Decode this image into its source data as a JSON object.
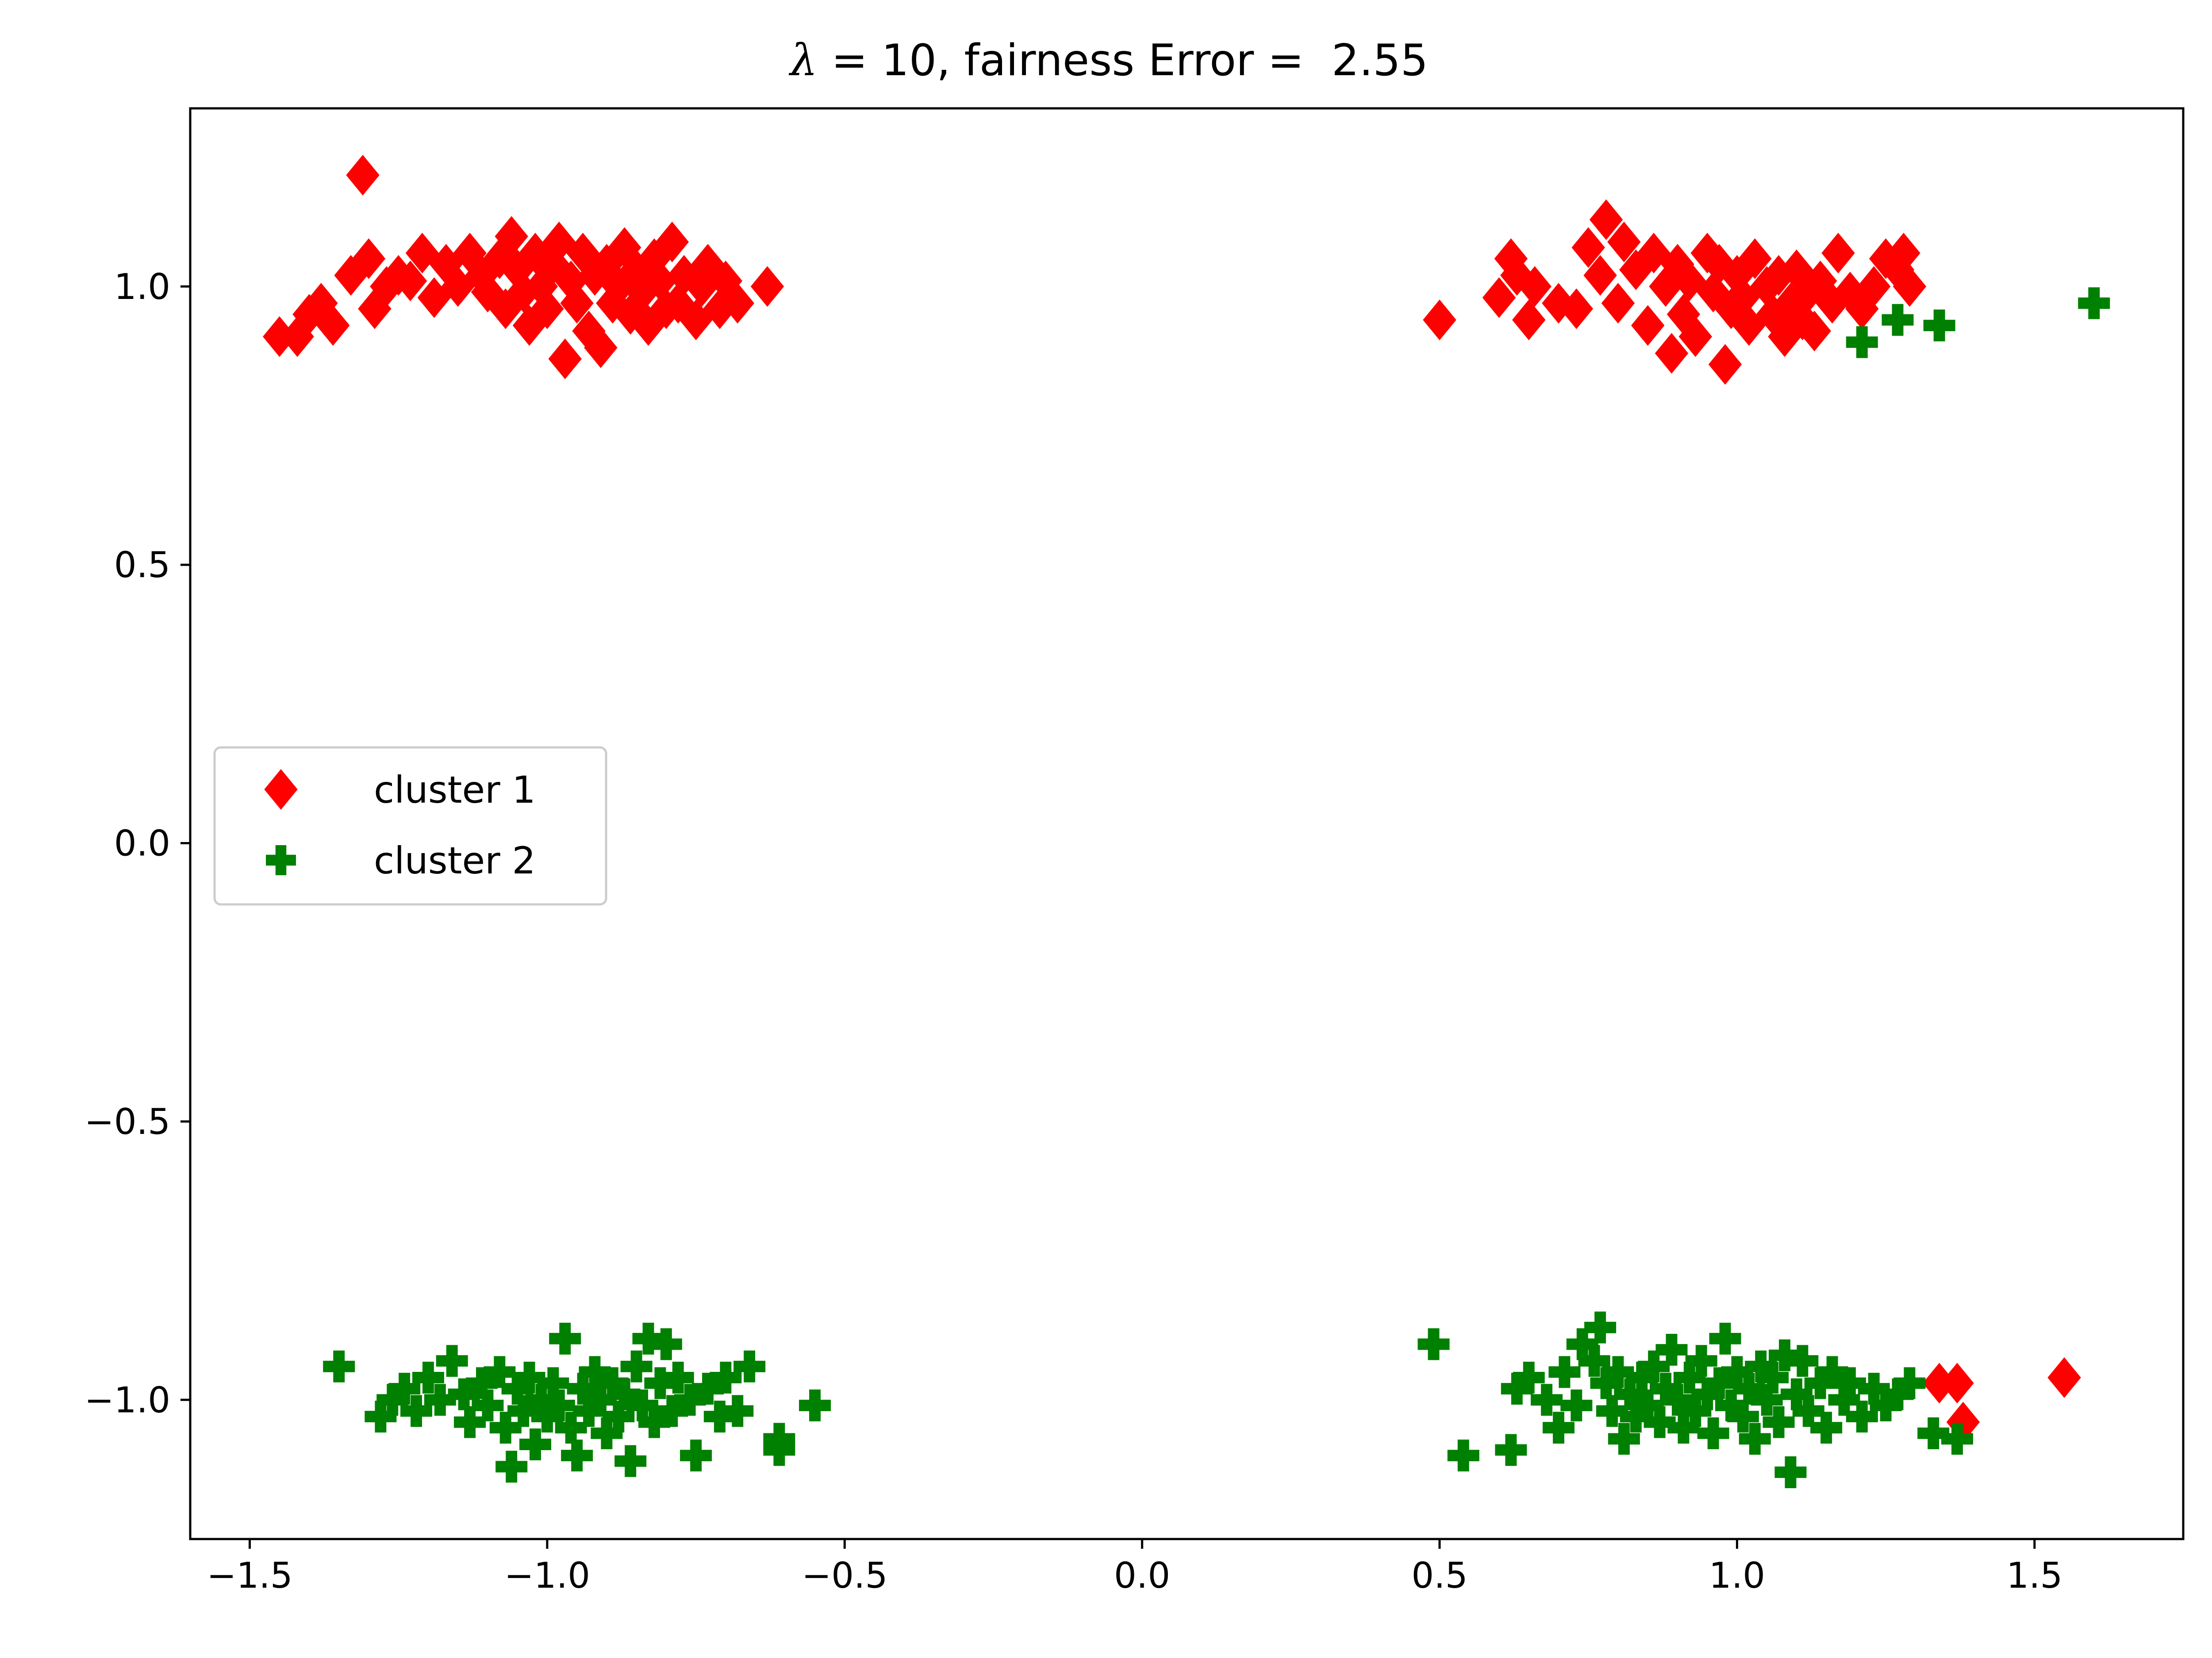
{
  "chart_data": {
    "type": "scatter",
    "title": "λ = 10, fairness Error =  2.55",
    "title_parts": {
      "lambda": "λ",
      "rest": " = 10, fairness Error =  2.55"
    },
    "xlabel": "",
    "ylabel": "",
    "xlim": [
      -1.6,
      1.75
    ],
    "ylim": [
      -1.25,
      1.32
    ],
    "xticks": [
      -1.5,
      -1.0,
      -0.5,
      0.0,
      0.5,
      1.0,
      1.5
    ],
    "xtick_labels": [
      "−1.5",
      "−1.0",
      "−0.5",
      "0.0",
      "0.5",
      "1.0",
      "1.5"
    ],
    "yticks": [
      -1.0,
      -0.5,
      0.0,
      0.5,
      1.0
    ],
    "ytick_labels": [
      "−1.0",
      "−0.5",
      "0.0",
      "0.5",
      "1.0"
    ],
    "grid": false,
    "legend": {
      "placement": "center-left"
    },
    "series": [
      {
        "name": "cluster 1",
        "marker": "diamond",
        "color": "#ff0000",
        "points": [
          [
            -1.45,
            0.91
          ],
          [
            -1.42,
            0.91
          ],
          [
            -1.4,
            0.95
          ],
          [
            -1.38,
            0.97
          ],
          [
            -1.36,
            0.93
          ],
          [
            -1.33,
            1.02
          ],
          [
            -1.31,
            1.2
          ],
          [
            -1.3,
            1.05
          ],
          [
            -1.29,
            0.96
          ],
          [
            -1.27,
            1.0
          ],
          [
            -1.25,
            1.02
          ],
          [
            -1.23,
            1.01
          ],
          [
            -1.21,
            1.06
          ],
          [
            -1.19,
            0.98
          ],
          [
            -1.17,
            1.04
          ],
          [
            -1.15,
            1.0
          ],
          [
            -1.13,
            1.06
          ],
          [
            -1.11,
            1.02
          ],
          [
            -1.1,
            0.99
          ],
          [
            -1.08,
            1.05
          ],
          [
            -1.07,
            0.96
          ],
          [
            -1.06,
            1.09
          ],
          [
            -1.05,
            1.03
          ],
          [
            -1.04,
            0.99
          ],
          [
            -1.03,
            0.93
          ],
          [
            -1.02,
            1.06
          ],
          [
            -1.01,
            1.0
          ],
          [
            -1.0,
            0.96
          ],
          [
            -0.99,
            1.04
          ],
          [
            -0.98,
            1.08
          ],
          [
            -0.97,
            0.87
          ],
          [
            -0.96,
            1.01
          ],
          [
            -0.95,
            0.97
          ],
          [
            -0.94,
            1.06
          ],
          [
            -0.93,
            0.92
          ],
          [
            -0.92,
            1.02
          ],
          [
            -0.91,
            0.89
          ],
          [
            -0.9,
            1.04
          ],
          [
            -0.89,
            0.97
          ],
          [
            -0.88,
            1.0
          ],
          [
            -0.87,
            1.07
          ],
          [
            -0.86,
            0.95
          ],
          [
            -0.85,
            1.03
          ],
          [
            -0.84,
            0.99
          ],
          [
            -0.83,
            0.93
          ],
          [
            -0.82,
            1.05
          ],
          [
            -0.81,
            1.01
          ],
          [
            -0.8,
            0.96
          ],
          [
            -0.79,
            1.08
          ],
          [
            -0.78,
            0.97
          ],
          [
            -0.77,
            1.02
          ],
          [
            -0.75,
            0.94
          ],
          [
            -0.74,
            1.0
          ],
          [
            -0.73,
            1.04
          ],
          [
            -0.71,
            0.96
          ],
          [
            -0.7,
            1.01
          ],
          [
            -0.68,
            0.97
          ],
          [
            -0.63,
            1.0
          ],
          [
            0.5,
            0.94
          ],
          [
            0.6,
            0.98
          ],
          [
            0.62,
            1.05
          ],
          [
            0.63,
            1.02
          ],
          [
            0.65,
            0.94
          ],
          [
            0.66,
            1.0
          ],
          [
            0.7,
            0.97
          ],
          [
            0.73,
            0.96
          ],
          [
            0.75,
            1.07
          ],
          [
            0.77,
            1.02
          ],
          [
            0.78,
            1.12
          ],
          [
            0.8,
            0.97
          ],
          [
            0.81,
            1.08
          ],
          [
            0.83,
            1.03
          ],
          [
            0.85,
            0.93
          ],
          [
            0.86,
            1.06
          ],
          [
            0.88,
            1.0
          ],
          [
            0.89,
            0.88
          ],
          [
            0.9,
            1.04
          ],
          [
            0.91,
            0.95
          ],
          [
            0.92,
            1.01
          ],
          [
            0.93,
            0.91
          ],
          [
            0.95,
            1.06
          ],
          [
            0.96,
            0.99
          ],
          [
            0.97,
            1.04
          ],
          [
            0.98,
            0.86
          ],
          [
            0.99,
            0.96
          ],
          [
            1.0,
            1.02
          ],
          [
            1.01,
            0.98
          ],
          [
            1.02,
            0.93
          ],
          [
            1.03,
            1.05
          ],
          [
            1.05,
            1.0
          ],
          [
            1.06,
            0.95
          ],
          [
            1.07,
            1.02
          ],
          [
            1.08,
            0.91
          ],
          [
            1.09,
            0.97
          ],
          [
            1.1,
            1.03
          ],
          [
            1.11,
            0.94
          ],
          [
            1.12,
            0.99
          ],
          [
            1.13,
            0.92
          ],
          [
            1.14,
            1.01
          ],
          [
            1.16,
            0.97
          ],
          [
            1.17,
            1.06
          ],
          [
            1.19,
            0.99
          ],
          [
            1.21,
            0.96
          ],
          [
            1.23,
            1.0
          ],
          [
            1.25,
            1.05
          ],
          [
            1.27,
            1.03
          ],
          [
            1.28,
            1.06
          ],
          [
            1.29,
            1.0
          ],
          [
            1.34,
            -0.97
          ],
          [
            1.37,
            -0.97
          ],
          [
            1.38,
            -1.04
          ],
          [
            1.55,
            -0.96
          ]
        ]
      },
      {
        "name": "cluster 2",
        "marker": "plus",
        "color": "#008000",
        "points": [
          [
            -1.35,
            -0.94
          ],
          [
            -1.28,
            -1.03
          ],
          [
            -1.26,
            -1.0
          ],
          [
            -1.24,
            -0.98
          ],
          [
            -1.22,
            -1.02
          ],
          [
            -1.2,
            -0.96
          ],
          [
            -1.18,
            -1.0
          ],
          [
            -1.16,
            -0.93
          ],
          [
            -1.14,
            -0.99
          ],
          [
            -1.13,
            -1.04
          ],
          [
            -1.11,
            -0.97
          ],
          [
            -1.1,
            -1.01
          ],
          [
            -1.08,
            -0.95
          ],
          [
            -1.07,
            -1.05
          ],
          [
            -1.06,
            -1.12
          ],
          [
            -1.05,
            -0.98
          ],
          [
            -1.04,
            -1.02
          ],
          [
            -1.03,
            -0.96
          ],
          [
            -1.02,
            -1.08
          ],
          [
            -1.01,
            -1.0
          ],
          [
            -1.0,
            -1.03
          ],
          [
            -0.99,
            -0.97
          ],
          [
            -0.98,
            -1.01
          ],
          [
            -0.97,
            -0.89
          ],
          [
            -0.96,
            -1.05
          ],
          [
            -0.95,
            -1.1
          ],
          [
            -0.94,
            -0.98
          ],
          [
            -0.93,
            -1.02
          ],
          [
            -0.92,
            -0.95
          ],
          [
            -0.91,
            -1.0
          ],
          [
            -0.9,
            -1.06
          ],
          [
            -0.89,
            -0.97
          ],
          [
            -0.88,
            -1.03
          ],
          [
            -0.87,
            -0.99
          ],
          [
            -0.86,
            -1.11
          ],
          [
            -0.85,
            -0.94
          ],
          [
            -0.84,
            -1.01
          ],
          [
            -0.83,
            -0.89
          ],
          [
            -0.82,
            -1.04
          ],
          [
            -0.81,
            -0.97
          ],
          [
            -0.8,
            -0.9
          ],
          [
            -0.79,
            -1.02
          ],
          [
            -0.78,
            -0.96
          ],
          [
            -0.76,
            -1.0
          ],
          [
            -0.75,
            -1.1
          ],
          [
            -0.73,
            -0.98
          ],
          [
            -0.71,
            -1.03
          ],
          [
            -0.7,
            -0.96
          ],
          [
            -0.68,
            -1.02
          ],
          [
            -0.66,
            -0.94
          ],
          [
            -0.61,
            -1.07
          ],
          [
            -0.61,
            -1.09
          ],
          [
            -0.55,
            -1.01
          ],
          [
            0.49,
            -0.9
          ],
          [
            0.54,
            -1.1
          ],
          [
            0.62,
            -1.09
          ],
          [
            0.63,
            -0.98
          ],
          [
            0.65,
            -0.96
          ],
          [
            0.68,
            -1.0
          ],
          [
            0.7,
            -1.05
          ],
          [
            0.71,
            -0.95
          ],
          [
            0.73,
            -1.01
          ],
          [
            0.74,
            -0.9
          ],
          [
            0.76,
            -0.93
          ],
          [
            0.77,
            -0.87
          ],
          [
            0.78,
            -0.97
          ],
          [
            0.79,
            -1.02
          ],
          [
            0.8,
            -0.95
          ],
          [
            0.81,
            -1.07
          ],
          [
            0.82,
            -0.99
          ],
          [
            0.83,
            -1.03
          ],
          [
            0.84,
            -0.96
          ],
          [
            0.85,
            -1.01
          ],
          [
            0.86,
            -0.94
          ],
          [
            0.87,
            -1.04
          ],
          [
            0.88,
            -0.98
          ],
          [
            0.89,
            -0.91
          ],
          [
            0.9,
            -1.0
          ],
          [
            0.91,
            -1.05
          ],
          [
            0.92,
            -0.96
          ],
          [
            0.93,
            -1.02
          ],
          [
            0.94,
            -0.93
          ],
          [
            0.95,
            -0.99
          ],
          [
            0.96,
            -1.06
          ],
          [
            0.97,
            -0.97
          ],
          [
            0.98,
            -0.89
          ],
          [
            0.99,
            -1.01
          ],
          [
            1.0,
            -0.95
          ],
          [
            1.01,
            -1.03
          ],
          [
            1.02,
            -0.98
          ],
          [
            1.03,
            -1.07
          ],
          [
            1.04,
            -0.94
          ],
          [
            1.05,
            -1.0
          ],
          [
            1.06,
            -0.96
          ],
          [
            1.07,
            -1.04
          ],
          [
            1.08,
            -0.92
          ],
          [
            1.09,
            -1.13
          ],
          [
            1.1,
            -0.99
          ],
          [
            1.11,
            -0.93
          ],
          [
            1.12,
            -1.02
          ],
          [
            1.14,
            -0.97
          ],
          [
            1.15,
            -1.05
          ],
          [
            1.16,
            -0.95
          ],
          [
            1.18,
            -1.0
          ],
          [
            1.19,
            -0.97
          ],
          [
            1.21,
            -1.03
          ],
          [
            1.23,
            -0.98
          ],
          [
            1.25,
            -1.01
          ],
          [
            1.27,
            -0.99
          ],
          [
            1.29,
            -0.97
          ],
          [
            1.33,
            -1.06
          ],
          [
            1.37,
            -1.07
          ],
          [
            1.21,
            0.9
          ],
          [
            1.27,
            0.94
          ],
          [
            1.34,
            0.93
          ],
          [
            1.6,
            0.97
          ]
        ]
      }
    ]
  }
}
